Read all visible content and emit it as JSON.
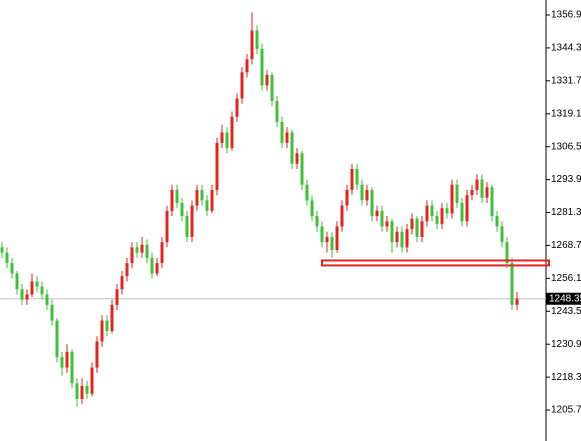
{
  "chart_data": {
    "type": "candlestick",
    "up_color": "#e3261d",
    "down_color": "#3fc03a",
    "ylim": [
      1193.91,
      1362.68
    ],
    "yticks": [
      1356.95,
      1344.35,
      1331.75,
      1319.15,
      1306.55,
      1293.95,
      1281.35,
      1268.75,
      1256.15,
      1243.55,
      1230.95,
      1218.35,
      1205.75
    ],
    "last_price": 1248.35,
    "zone": {
      "top": 1263.0,
      "bottom": 1261.1,
      "color": "#e3261d",
      "start_candle": 64
    },
    "candles": [
      [
        1268,
        1270,
        1264,
        1266
      ],
      [
        1266,
        1268,
        1260,
        1262
      ],
      [
        1262,
        1264,
        1256,
        1258
      ],
      [
        1258,
        1259,
        1250,
        1252
      ],
      [
        1252,
        1254,
        1246,
        1248
      ],
      [
        1248,
        1252,
        1246,
        1250
      ],
      [
        1250,
        1258,
        1249,
        1255
      ],
      [
        1255,
        1257,
        1251,
        1253
      ],
      [
        1253,
        1255,
        1248,
        1250
      ],
      [
        1250,
        1252,
        1244,
        1246
      ],
      [
        1246,
        1248,
        1238,
        1240
      ],
      [
        1240,
        1241,
        1224,
        1226
      ],
      [
        1226,
        1228,
        1219,
        1222
      ],
      [
        1222,
        1231,
        1220,
        1228
      ],
      [
        1228,
        1229,
        1214,
        1216
      ],
      [
        1216,
        1218,
        1207,
        1210
      ],
      [
        1210,
        1218,
        1208,
        1215
      ],
      [
        1215,
        1217,
        1210,
        1212
      ],
      [
        1212,
        1224,
        1211,
        1222
      ],
      [
        1222,
        1234,
        1220,
        1232
      ],
      [
        1232,
        1242,
        1230,
        1240
      ],
      [
        1240,
        1242,
        1234,
        1236
      ],
      [
        1236,
        1248,
        1235,
        1246
      ],
      [
        1246,
        1254,
        1244,
        1252
      ],
      [
        1252,
        1259,
        1250,
        1257
      ],
      [
        1257,
        1264,
        1255,
        1262
      ],
      [
        1262,
        1270,
        1260,
        1268
      ],
      [
        1268,
        1270,
        1264,
        1266
      ],
      [
        1266,
        1272,
        1264,
        1269
      ],
      [
        1269,
        1271,
        1262,
        1264
      ],
      [
        1264,
        1266,
        1256,
        1258
      ],
      [
        1258,
        1264,
        1257,
        1262
      ],
      [
        1262,
        1272,
        1260,
        1270
      ],
      [
        1270,
        1284,
        1268,
        1282
      ],
      [
        1282,
        1292,
        1280,
        1290
      ],
      [
        1290,
        1292,
        1283,
        1285
      ],
      [
        1285,
        1287,
        1278,
        1280
      ],
      [
        1280,
        1282,
        1270,
        1272
      ],
      [
        1272,
        1286,
        1270,
        1284
      ],
      [
        1284,
        1292,
        1282,
        1290
      ],
      [
        1290,
        1292,
        1284,
        1286
      ],
      [
        1286,
        1288,
        1280,
        1282
      ],
      [
        1282,
        1292,
        1281,
        1290
      ],
      [
        1290,
        1310,
        1288,
        1308
      ],
      [
        1308,
        1315,
        1306,
        1312
      ],
      [
        1312,
        1314,
        1304,
        1306
      ],
      [
        1306,
        1320,
        1305,
        1318
      ],
      [
        1318,
        1327,
        1316,
        1325
      ],
      [
        1325,
        1337,
        1323,
        1335
      ],
      [
        1335,
        1342,
        1333,
        1340
      ],
      [
        1340,
        1358,
        1338,
        1351
      ],
      [
        1351,
        1353,
        1342,
        1344
      ],
      [
        1344,
        1346,
        1328,
        1330
      ],
      [
        1330,
        1336,
        1328,
        1334
      ],
      [
        1334,
        1335,
        1322,
        1324
      ],
      [
        1324,
        1326,
        1314,
        1316
      ],
      [
        1316,
        1318,
        1306,
        1308
      ],
      [
        1308,
        1314,
        1306,
        1312
      ],
      [
        1312,
        1313,
        1298,
        1300
      ],
      [
        1300,
        1306,
        1298,
        1304
      ],
      [
        1304,
        1305,
        1290,
        1292
      ],
      [
        1292,
        1294,
        1284,
        1286
      ],
      [
        1286,
        1288,
        1278,
        1280
      ],
      [
        1280,
        1282,
        1274,
        1276
      ],
      [
        1276,
        1278,
        1268,
        1270
      ],
      [
        1270,
        1274,
        1266,
        1272
      ],
      [
        1272,
        1274,
        1264,
        1267
      ],
      [
        1267,
        1278,
        1266,
        1276
      ],
      [
        1276,
        1286,
        1274,
        1284
      ],
      [
        1284,
        1292,
        1282,
        1290
      ],
      [
        1290,
        1300,
        1288,
        1298
      ],
      [
        1298,
        1300,
        1290,
        1292
      ],
      [
        1292,
        1294,
        1284,
        1286
      ],
      [
        1286,
        1292,
        1284,
        1290
      ],
      [
        1290,
        1291,
        1278,
        1280
      ],
      [
        1280,
        1284,
        1278,
        1282
      ],
      [
        1282,
        1284,
        1274,
        1276
      ],
      [
        1276,
        1280,
        1274,
        1278
      ],
      [
        1278,
        1279,
        1266,
        1270
      ],
      [
        1270,
        1276,
        1268,
        1274
      ],
      [
        1274,
        1276,
        1266,
        1268
      ],
      [
        1268,
        1277,
        1266,
        1275
      ],
      [
        1275,
        1281,
        1273,
        1279
      ],
      [
        1279,
        1280,
        1270,
        1272
      ],
      [
        1272,
        1280,
        1270,
        1278
      ],
      [
        1278,
        1286,
        1276,
        1284
      ],
      [
        1284,
        1286,
        1278,
        1280
      ],
      [
        1280,
        1282,
        1275,
        1277
      ],
      [
        1277,
        1285,
        1275,
        1283
      ],
      [
        1283,
        1285,
        1279,
        1281
      ],
      [
        1281,
        1294,
        1279,
        1292
      ],
      [
        1292,
        1294,
        1283,
        1285
      ],
      [
        1285,
        1287,
        1276,
        1278
      ],
      [
        1278,
        1290,
        1276,
        1288
      ],
      [
        1288,
        1292,
        1286,
        1290
      ],
      [
        1290,
        1296,
        1288,
        1294
      ],
      [
        1294,
        1296,
        1285,
        1287
      ],
      [
        1287,
        1293,
        1285,
        1291
      ],
      [
        1291,
        1292,
        1278,
        1280
      ],
      [
        1280,
        1282,
        1274,
        1276
      ],
      [
        1276,
        1278,
        1268,
        1270
      ],
      [
        1270,
        1272,
        1260,
        1262
      ],
      [
        1262,
        1264,
        1244,
        1246
      ],
      [
        1246,
        1251,
        1244,
        1248.35
      ]
    ]
  }
}
